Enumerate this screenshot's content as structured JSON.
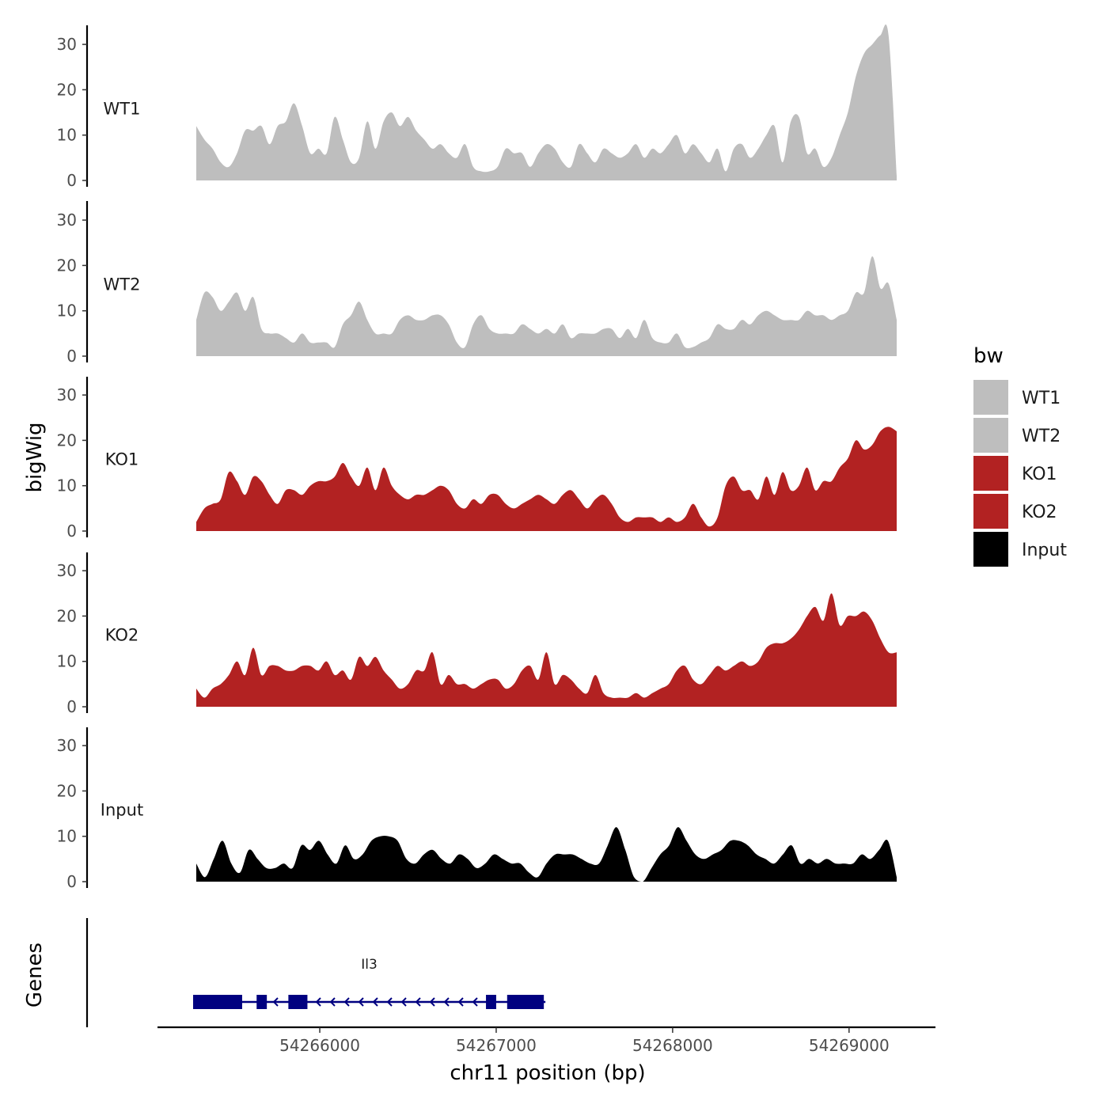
{
  "chart_data": {
    "type": "area",
    "title": "",
    "region": {
      "chrom": "chr11",
      "start": 54265300,
      "end": 54269270
    },
    "xlabel": "chr11 position (bp)",
    "ylabel": "bigWig",
    "gene_panel_label": "Genes",
    "ylim": [
      0,
      33
    ],
    "y_ticks": [
      0,
      10,
      20,
      30
    ],
    "x_ticks": [
      54266000,
      54267000,
      54268000,
      54269000
    ],
    "x_tick_labels": [
      "54266000",
      "54267000",
      "54268000",
      "54269000"
    ],
    "legend": {
      "title": "bw",
      "position": "right",
      "entries": [
        {
          "label": "WT1",
          "color": "#bebebe"
        },
        {
          "label": "WT2",
          "color": "#bebebe"
        },
        {
          "label": "KO1",
          "color": "#b22222"
        },
        {
          "label": "KO2",
          "color": "#b22222"
        },
        {
          "label": "Input",
          "color": "#000000"
        }
      ]
    },
    "series": [
      {
        "name": "WT1",
        "color": "#bebebe",
        "x_start": 54265300,
        "x_end": 54269270,
        "values": [
          12,
          9,
          7,
          4,
          3,
          6,
          11,
          11,
          12,
          8,
          12,
          13,
          17,
          12,
          6,
          7,
          6,
          14,
          9,
          4,
          5,
          13,
          7,
          13,
          15,
          12,
          14,
          11,
          9,
          7,
          8,
          6,
          5,
          8,
          3,
          2,
          2,
          3,
          7,
          6,
          6,
          3,
          6,
          8,
          7,
          4,
          3,
          8,
          6,
          4,
          7,
          6,
          5,
          6,
          8,
          5,
          7,
          6,
          8,
          10,
          6,
          8,
          6,
          4,
          7,
          2,
          7,
          8,
          5,
          7,
          10,
          12,
          4,
          13,
          14,
          6,
          7,
          3,
          5,
          10,
          15,
          23,
          28,
          30,
          32,
          32,
          1
        ]
      },
      {
        "name": "WT2",
        "color": "#bebebe",
        "x_start": 54265300,
        "x_end": 54269270,
        "values": [
          8,
          14,
          13,
          10,
          12,
          14,
          10,
          13,
          6,
          5,
          5,
          4,
          3,
          5,
          3,
          3,
          3,
          2,
          7,
          9,
          12,
          8,
          5,
          5,
          5,
          8,
          9,
          8,
          8,
          9,
          9,
          7,
          3,
          2,
          7,
          9,
          6,
          5,
          5,
          5,
          7,
          6,
          5,
          6,
          5,
          7,
          4,
          5,
          5,
          5,
          6,
          6,
          4,
          6,
          4,
          8,
          4,
          3,
          3,
          5,
          2,
          2,
          3,
          4,
          7,
          6,
          6,
          8,
          7,
          9,
          10,
          9,
          8,
          8,
          8,
          10,
          9,
          9,
          8,
          9,
          10,
          14,
          14,
          22,
          15,
          16,
          8
        ]
      },
      {
        "name": "KO1",
        "color": "#b22222",
        "x_start": 54265300,
        "x_end": 54269270,
        "values": [
          2,
          5,
          6,
          7,
          13,
          11,
          8,
          12,
          11,
          8,
          6,
          9,
          9,
          8,
          10,
          11,
          11,
          12,
          15,
          12,
          10,
          14,
          9,
          14,
          10,
          8,
          7,
          8,
          8,
          9,
          10,
          9,
          6,
          5,
          7,
          6,
          8,
          8,
          6,
          5,
          6,
          7,
          8,
          7,
          6,
          8,
          9,
          7,
          5,
          7,
          8,
          6,
          3,
          2,
          3,
          3,
          3,
          2,
          3,
          2,
          3,
          6,
          3,
          1,
          3,
          10,
          12,
          9,
          9,
          7,
          12,
          8,
          13,
          9,
          10,
          14,
          9,
          11,
          11,
          14,
          16,
          20,
          18,
          19,
          22,
          23,
          22
        ]
      },
      {
        "name": "KO2",
        "color": "#b22222",
        "x_start": 54265300,
        "x_end": 54269270,
        "values": [
          4,
          2,
          4,
          5,
          7,
          10,
          7,
          13,
          7,
          9,
          9,
          8,
          8,
          9,
          9,
          8,
          10,
          7,
          8,
          6,
          11,
          9,
          11,
          8,
          6,
          4,
          5,
          8,
          8,
          12,
          5,
          7,
          5,
          5,
          4,
          5,
          6,
          6,
          4,
          5,
          8,
          9,
          6,
          12,
          5,
          7,
          6,
          4,
          3,
          7,
          3,
          2,
          2,
          2,
          3,
          2,
          3,
          4,
          5,
          8,
          9,
          6,
          5,
          7,
          9,
          8,
          9,
          10,
          9,
          10,
          13,
          14,
          14,
          15,
          17,
          20,
          22,
          19,
          25,
          18,
          20,
          20,
          21,
          19,
          15,
          12,
          12
        ]
      },
      {
        "name": "Input",
        "color": "#000000",
        "x_start": 54265300,
        "x_end": 54269270,
        "values": [
          4,
          1,
          5,
          9,
          4,
          2,
          7,
          5,
          3,
          3,
          4,
          3,
          8,
          7,
          9,
          6,
          4,
          8,
          5,
          6,
          9,
          10,
          10,
          9,
          5,
          4,
          6,
          7,
          5,
          4,
          6,
          5,
          3,
          4,
          6,
          5,
          4,
          4,
          2,
          1,
          4,
          6,
          6,
          6,
          5,
          4,
          4,
          8,
          12,
          7,
          1,
          0,
          3,
          6,
          8,
          12,
          9,
          6,
          5,
          6,
          7,
          9,
          9,
          8,
          6,
          5,
          4,
          6,
          8,
          4,
          5,
          4,
          5,
          4,
          4,
          4,
          6,
          5,
          7,
          9,
          1
        ]
      }
    ],
    "genes": [
      {
        "name": "Il3",
        "strand": "-",
        "tx_start": 54265300,
        "tx_end": 54267270,
        "exons": [
          [
            54265300,
            54265560
          ],
          [
            54265660,
            54265700
          ],
          [
            54265840,
            54265930
          ],
          [
            54266960,
            54267000
          ],
          [
            54267080,
            54267270
          ]
        ]
      }
    ]
  }
}
